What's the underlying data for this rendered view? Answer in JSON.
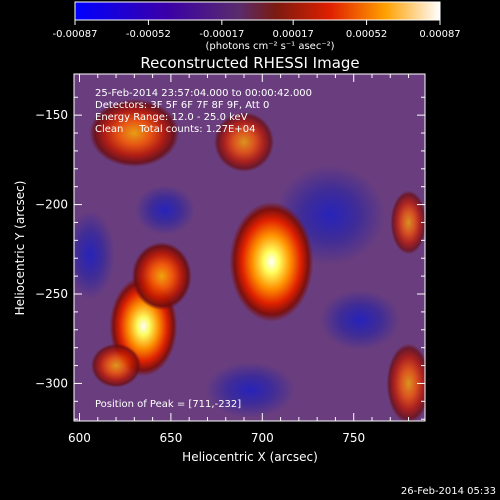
{
  "colorbar": {
    "tick_labels": [
      "-0.00087",
      "-0.00052",
      "-0.00017",
      "0.00017",
      "0.00052",
      "0.00087"
    ],
    "tick_values": [
      -0.00087,
      -0.00052,
      -0.00017,
      0.00017,
      0.00052,
      0.00087
    ],
    "unit_label": "(photons cm⁻² s⁻¹ asec⁻²)",
    "range": [
      -0.00087,
      0.00087
    ]
  },
  "chart_data": {
    "type": "heatmap",
    "title": "Reconstructed RHESSI Image",
    "xlabel": "Heliocentric X (arcsec)",
    "ylabel": "Heliocentric Y (arcsec)",
    "xlim": [
      597,
      789
    ],
    "ylim": [
      -321,
      -127
    ],
    "x_ticks": [
      600,
      650,
      700,
      750
    ],
    "y_ticks": [
      -150,
      -200,
      -250,
      -300
    ],
    "x_tick_labels": [
      "600",
      "650",
      "700",
      "750"
    ],
    "y_tick_labels": [
      "−150",
      "−200",
      "−250",
      "−300"
    ],
    "annotations": [
      "25-Feb-2014 23:57:04.000 to 00:00:42.000",
      "Detectors: 3F 5F 6F 7F 8F 9F, Att 0",
      "Energy Range: 12.0 - 25.0 keV",
      "Clean     Total counts: 1.27E+04"
    ],
    "peak_label": "Position of Peak = [711,-232]",
    "peak": [
      711,
      -232
    ],
    "sources": [
      {
        "x": 705,
        "y": -232,
        "level": 0.00087
      },
      {
        "x": 635,
        "y": -268,
        "level": 0.00075
      },
      {
        "x": 645,
        "y": -240,
        "level": 0.0006
      },
      {
        "x": 630,
        "y": -160,
        "level": 0.0005
      },
      {
        "x": 690,
        "y": -165,
        "level": 0.00035
      },
      {
        "x": 620,
        "y": -290,
        "level": 0.0004
      },
      {
        "x": 780,
        "y": -300,
        "level": 0.00035
      },
      {
        "x": 780,
        "y": -210,
        "level": 0.0003
      }
    ]
  },
  "footer": {
    "timestamp": "26-Feb-2014 05:33"
  }
}
